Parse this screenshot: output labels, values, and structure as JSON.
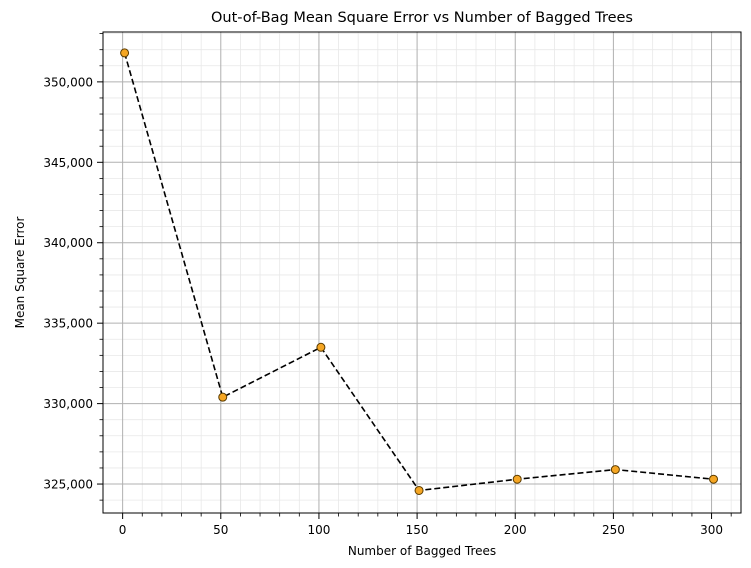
{
  "chart_data": {
    "type": "line",
    "title": "Out-of-Bag Mean Square Error vs Number of Bagged Trees",
    "xlabel": "Number of Bagged Trees",
    "ylabel": "Mean Square Error",
    "xlim": [
      -10,
      315
    ],
    "ylim": [
      323200,
      353100
    ],
    "xticks": [
      0,
      50,
      100,
      150,
      200,
      250,
      300
    ],
    "xtick_labels": [
      "0",
      "50",
      "100",
      "150",
      "200",
      "250",
      "300"
    ],
    "yticks": [
      325000,
      330000,
      335000,
      340000,
      345000,
      350000
    ],
    "ytick_labels": [
      "325,000",
      "330,000",
      "335,000",
      "340,000",
      "345,000",
      "350,000"
    ],
    "grid": {
      "major": true,
      "minor": true
    },
    "line_style": "dashed",
    "line_color": "#000000",
    "marker_color": "#F5A623",
    "marker_edge_color": "#5a3b00",
    "series": [
      {
        "x": [
          1,
          51,
          101,
          151,
          201,
          251,
          301
        ],
        "y": [
          351800,
          330400,
          333500,
          324600,
          325300,
          325900,
          325300
        ]
      }
    ]
  }
}
